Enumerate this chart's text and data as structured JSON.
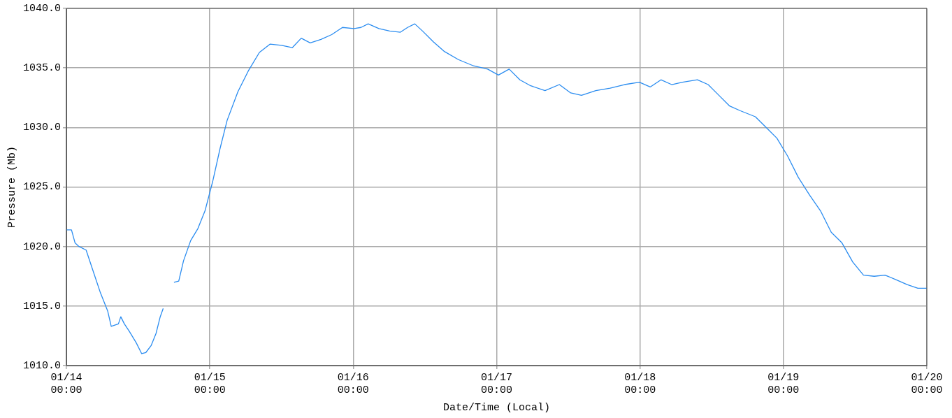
{
  "chart_data": {
    "type": "line",
    "xlabel": "Date/Time (Local)",
    "ylabel": "Pressure (Mb)",
    "x": [
      "--01-14T00:00",
      "--01-14T00:51",
      "--01-14T01:27",
      "--01-14T02:06",
      "--01-14T03:18",
      "--01-14T04:30",
      "--01-14T05:42",
      "--01-14T06:54",
      "--01-14T07:30",
      "--01-14T08:06",
      "--01-14T08:42",
      "--01-14T09:06",
      "--01-14T09:42",
      "--01-14T10:30",
      "--01-14T11:42",
      "--01-14T12:36",
      "--01-14T13:18",
      "--01-14T14:12",
      "--01-14T15:00",
      "--01-14T15:42",
      "--01-14T16:12",
      "--01-14T17:00",
      "--01-14T18:00",
      "--01-14T18:48",
      "--01-14T19:36",
      "--01-14T20:48",
      "--01-14T22:00",
      "--01-14T23:12",
      "--01-15T00:30",
      "--01-15T01:42",
      "--01-15T02:54",
      "--01-15T04:42",
      "--01-15T06:30",
      "--01-15T08:18",
      "--01-15T10:06",
      "--01-15T12:00",
      "--01-15T13:48",
      "--01-15T15:18",
      "--01-15T16:48",
      "--01-15T18:36",
      "--01-15T20:24",
      "--01-15T22:12",
      "--01-16T00:06",
      "--01-16T01:18",
      "--01-16T02:30",
      "--01-16T04:18",
      "--01-16T06:06",
      "--01-16T07:54",
      "--01-16T09:06",
      "--01-16T10:18",
      "--01-16T11:36",
      "--01-16T13:24",
      "--01-16T15:12",
      "--01-16T17:36",
      "--01-16T20:00",
      "--01-16T22:30",
      "--01-17T00:18",
      "--01-17T02:06",
      "--01-17T03:54",
      "--01-17T05:42",
      "--01-17T08:06",
      "--01-17T10:30",
      "--01-17T12:24",
      "--01-17T14:12",
      "--01-17T16:36",
      "--01-17T19:00",
      "--01-17T21:24",
      "--01-17T23:54",
      "--01-18T01:42",
      "--01-18T03:30",
      "--01-18T05:18",
      "--01-18T07:06",
      "--01-18T09:36",
      "--01-18T11:24",
      "--01-18T13:12",
      "--01-18T15:00",
      "--01-18T16:48",
      "--01-18T19:18",
      "--01-18T21:06",
      "--01-18T22:54",
      "--01-19T00:42",
      "--01-19T02:30",
      "--01-19T04:24",
      "--01-19T06:12",
      "--01-19T08:00",
      "--01-19T09:48",
      "--01-19T11:36",
      "--01-19T13:24",
      "--01-19T15:12",
      "--01-19T17:00",
      "--01-19T18:54",
      "--01-19T20:42",
      "--01-19T22:30",
      "--01-20T00:00"
    ],
    "series": [
      {
        "color": "#2a8cf0",
        "values": [
          1021.4,
          1021.4,
          1020.3,
          1020.0,
          1019.7,
          1017.9,
          1016.1,
          1014.6,
          1013.3,
          1013.4,
          1013.5,
          1014.1,
          1013.5,
          1012.9,
          1011.9,
          1011.0,
          1011.1,
          1011.7,
          1012.7,
          1014.1,
          1014.8,
          null,
          1017.0,
          1017.1,
          1018.8,
          1020.5,
          1021.5,
          1023.0,
          1025.5,
          1028.2,
          1030.6,
          1033.0,
          1034.8,
          1036.3,
          1037.0,
          1036.9,
          1036.7,
          1037.5,
          1037.1,
          1037.4,
          1037.8,
          1038.4,
          1038.3,
          1038.4,
          1038.7,
          1038.3,
          1038.1,
          1038.0,
          1038.4,
          1038.7,
          1038.1,
          1037.2,
          1036.4,
          1035.7,
          1035.2,
          1034.9,
          1034.4,
          1034.9,
          1034.0,
          1033.5,
          1033.1,
          1033.6,
          1032.9,
          1032.7,
          1033.1,
          1033.3,
          1033.6,
          1033.8,
          1033.4,
          1034.0,
          1033.6,
          1033.8,
          1034.0,
          1033.6,
          1032.7,
          1031.8,
          1031.4,
          1030.9,
          1030.0,
          1029.1,
          1027.6,
          1025.8,
          1024.3,
          1023.0,
          1021.2,
          1020.3,
          1018.7,
          1017.6,
          1017.5,
          1017.6,
          1017.2,
          1016.8,
          1016.5,
          1016.5
        ]
      }
    ],
    "xlim": [
      "--01-14T00:00",
      "--01-20T00:00"
    ],
    "xticks": [
      {
        "value": "--01-14T00:00",
        "label": "01/14\n00:00"
      },
      {
        "value": "--01-15T00:00",
        "label": "01/15\n00:00"
      },
      {
        "value": "--01-16T00:00",
        "label": "01/16\n00:00"
      },
      {
        "value": "--01-17T00:00",
        "label": "01/17\n00:00"
      },
      {
        "value": "--01-18T00:00",
        "label": "01/18\n00:00"
      },
      {
        "value": "--01-19T00:00",
        "label": "01/19\n00:00"
      },
      {
        "value": "--01-20T00:00",
        "label": "01/20\n00:00"
      }
    ],
    "ylim": [
      1010,
      1040
    ],
    "yticks": [
      {
        "value": 1010,
        "label": "1010.0"
      },
      {
        "value": 1015,
        "label": "1015.0"
      },
      {
        "value": 1020,
        "label": "1020.0"
      },
      {
        "value": 1025,
        "label": "1025.0"
      },
      {
        "value": 1030,
        "label": "1030.0"
      },
      {
        "value": 1035,
        "label": "1035.0"
      },
      {
        "value": 1040,
        "label": "1040.0"
      }
    ],
    "grid": true,
    "legend": false,
    "marker": "none",
    "line_style": "solid"
  }
}
